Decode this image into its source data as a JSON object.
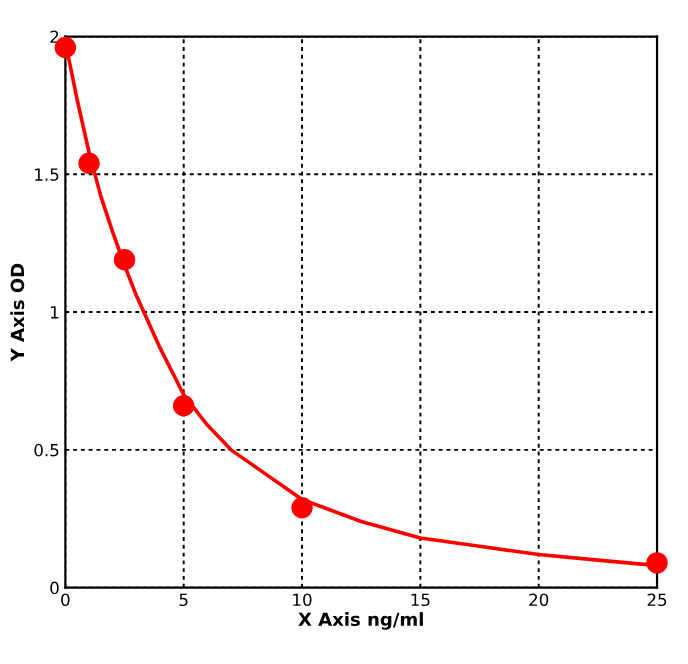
{
  "chart_data": {
    "type": "scatter",
    "xlabel": "X Axis ng/ml",
    "ylabel": "Y Axis OD",
    "xlim": [
      0,
      25
    ],
    "ylim": [
      0,
      2
    ],
    "xticks": [
      0,
      5,
      10,
      15,
      20,
      25
    ],
    "yticks": [
      0,
      0.5,
      1,
      1.5,
      2
    ],
    "grid": true,
    "series": [
      {
        "marker": "circle",
        "color": "#ff0000",
        "x": [
          0,
          1,
          2.5,
          5,
          10,
          25
        ],
        "values": [
          1.96,
          1.54,
          1.19,
          0.66,
          0.29,
          0.09
        ]
      },
      {
        "type": "line",
        "marker": "none",
        "color": "#ff0000",
        "line_style": "solid",
        "x": [
          0,
          0.5,
          1,
          1.5,
          2,
          2.5,
          3,
          4,
          5,
          6,
          7,
          8,
          10,
          12.5,
          15,
          17.5,
          20,
          22.5,
          25
        ],
        "values": [
          1.98,
          1.77,
          1.58,
          1.42,
          1.29,
          1.17,
          1.06,
          0.87,
          0.7,
          0.59,
          0.5,
          0.44,
          0.32,
          0.24,
          0.18,
          0.15,
          0.12,
          0.1,
          0.08
        ]
      }
    ]
  }
}
